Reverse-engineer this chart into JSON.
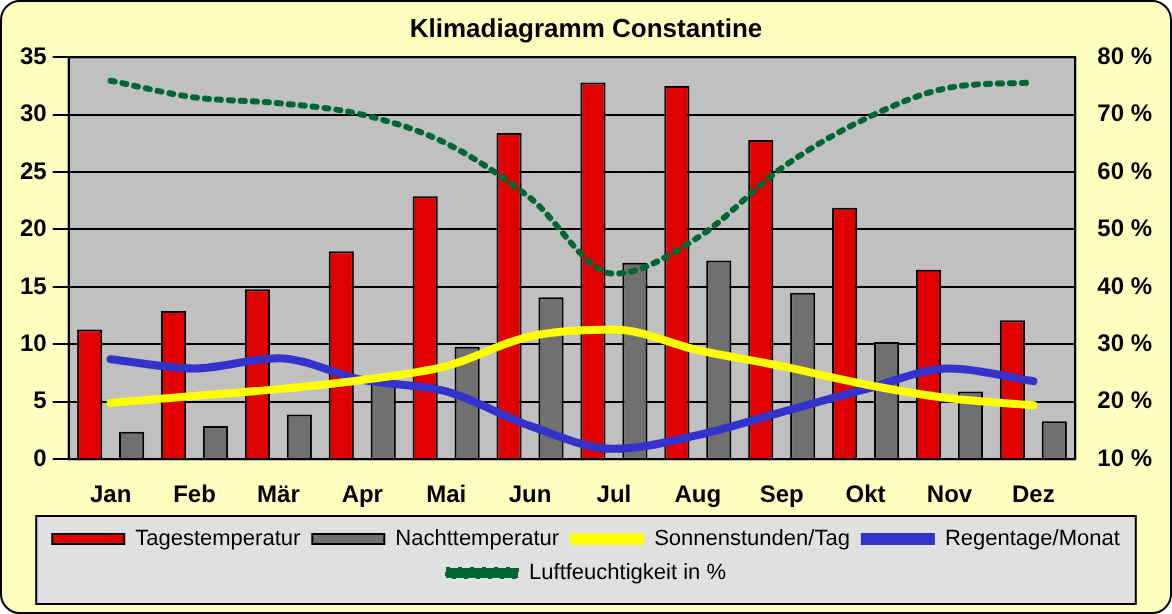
{
  "chart_data": {
    "type": "bar",
    "title": "Klimadiagramm Constantine",
    "categories": [
      "Jan",
      "Feb",
      "Mär",
      "Apr",
      "Mai",
      "Jun",
      "Jul",
      "Aug",
      "Sep",
      "Okt",
      "Nov",
      "Dez"
    ],
    "series": [
      {
        "name": "Tagestemperatur",
        "color": "#e00000",
        "values": [
          11.3,
          12.9,
          14.8,
          18.1,
          22.9,
          28.4,
          32.8,
          32.5,
          27.8,
          21.9,
          16.5,
          12.1
        ]
      },
      {
        "name": "Nachttemperatur",
        "color": "#707070",
        "values": [
          2.4,
          2.9,
          3.9,
          6.7,
          9.8,
          14.1,
          17.1,
          17.3,
          14.5,
          10.2,
          5.9,
          3.3
        ]
      },
      {
        "name": "Sonnenstunden/Tag",
        "type": "line",
        "color": "#ffff00",
        "values": [
          4.9,
          5.5,
          6.1,
          6.9,
          8.1,
          10.7,
          11.3,
          9.5,
          8.1,
          6.5,
          5.3,
          4.7
        ]
      },
      {
        "name": "Regentage/Monat",
        "type": "line",
        "color": "#3333cc",
        "values": [
          8.7,
          7.9,
          8.8,
          6.9,
          5.9,
          2.9,
          0.9,
          2.1,
          4.1,
          6.1,
          7.9,
          6.8
        ]
      },
      {
        "name": "Luftfeuchtigkeit in %",
        "type": "line",
        "axis": "y2",
        "line_style": "dotted",
        "color": "#006633",
        "values": [
          75.9,
          73,
          72,
          70,
          65,
          55.5,
          42.3,
          48.6,
          60.7,
          69.3,
          74.7,
          75.6
        ]
      }
    ],
    "ylim": [
      0,
      35
    ],
    "yticks": [
      0,
      5,
      10,
      15,
      20,
      25,
      30,
      35
    ],
    "y2lim": [
      10,
      80
    ],
    "y2ticks": [
      {
        "value": 10,
        "label": "10 %"
      },
      {
        "value": 20,
        "label": "20 %"
      },
      {
        "value": 30,
        "label": "30 %"
      },
      {
        "value": 40,
        "label": "40 %"
      },
      {
        "value": 50,
        "label": "50 %"
      },
      {
        "value": 60,
        "label": "60 %"
      },
      {
        "value": 70,
        "label": "70 %"
      },
      {
        "value": 80,
        "label": "80 %"
      }
    ],
    "grid": "y",
    "legend": "bottom",
    "marker": "none"
  }
}
